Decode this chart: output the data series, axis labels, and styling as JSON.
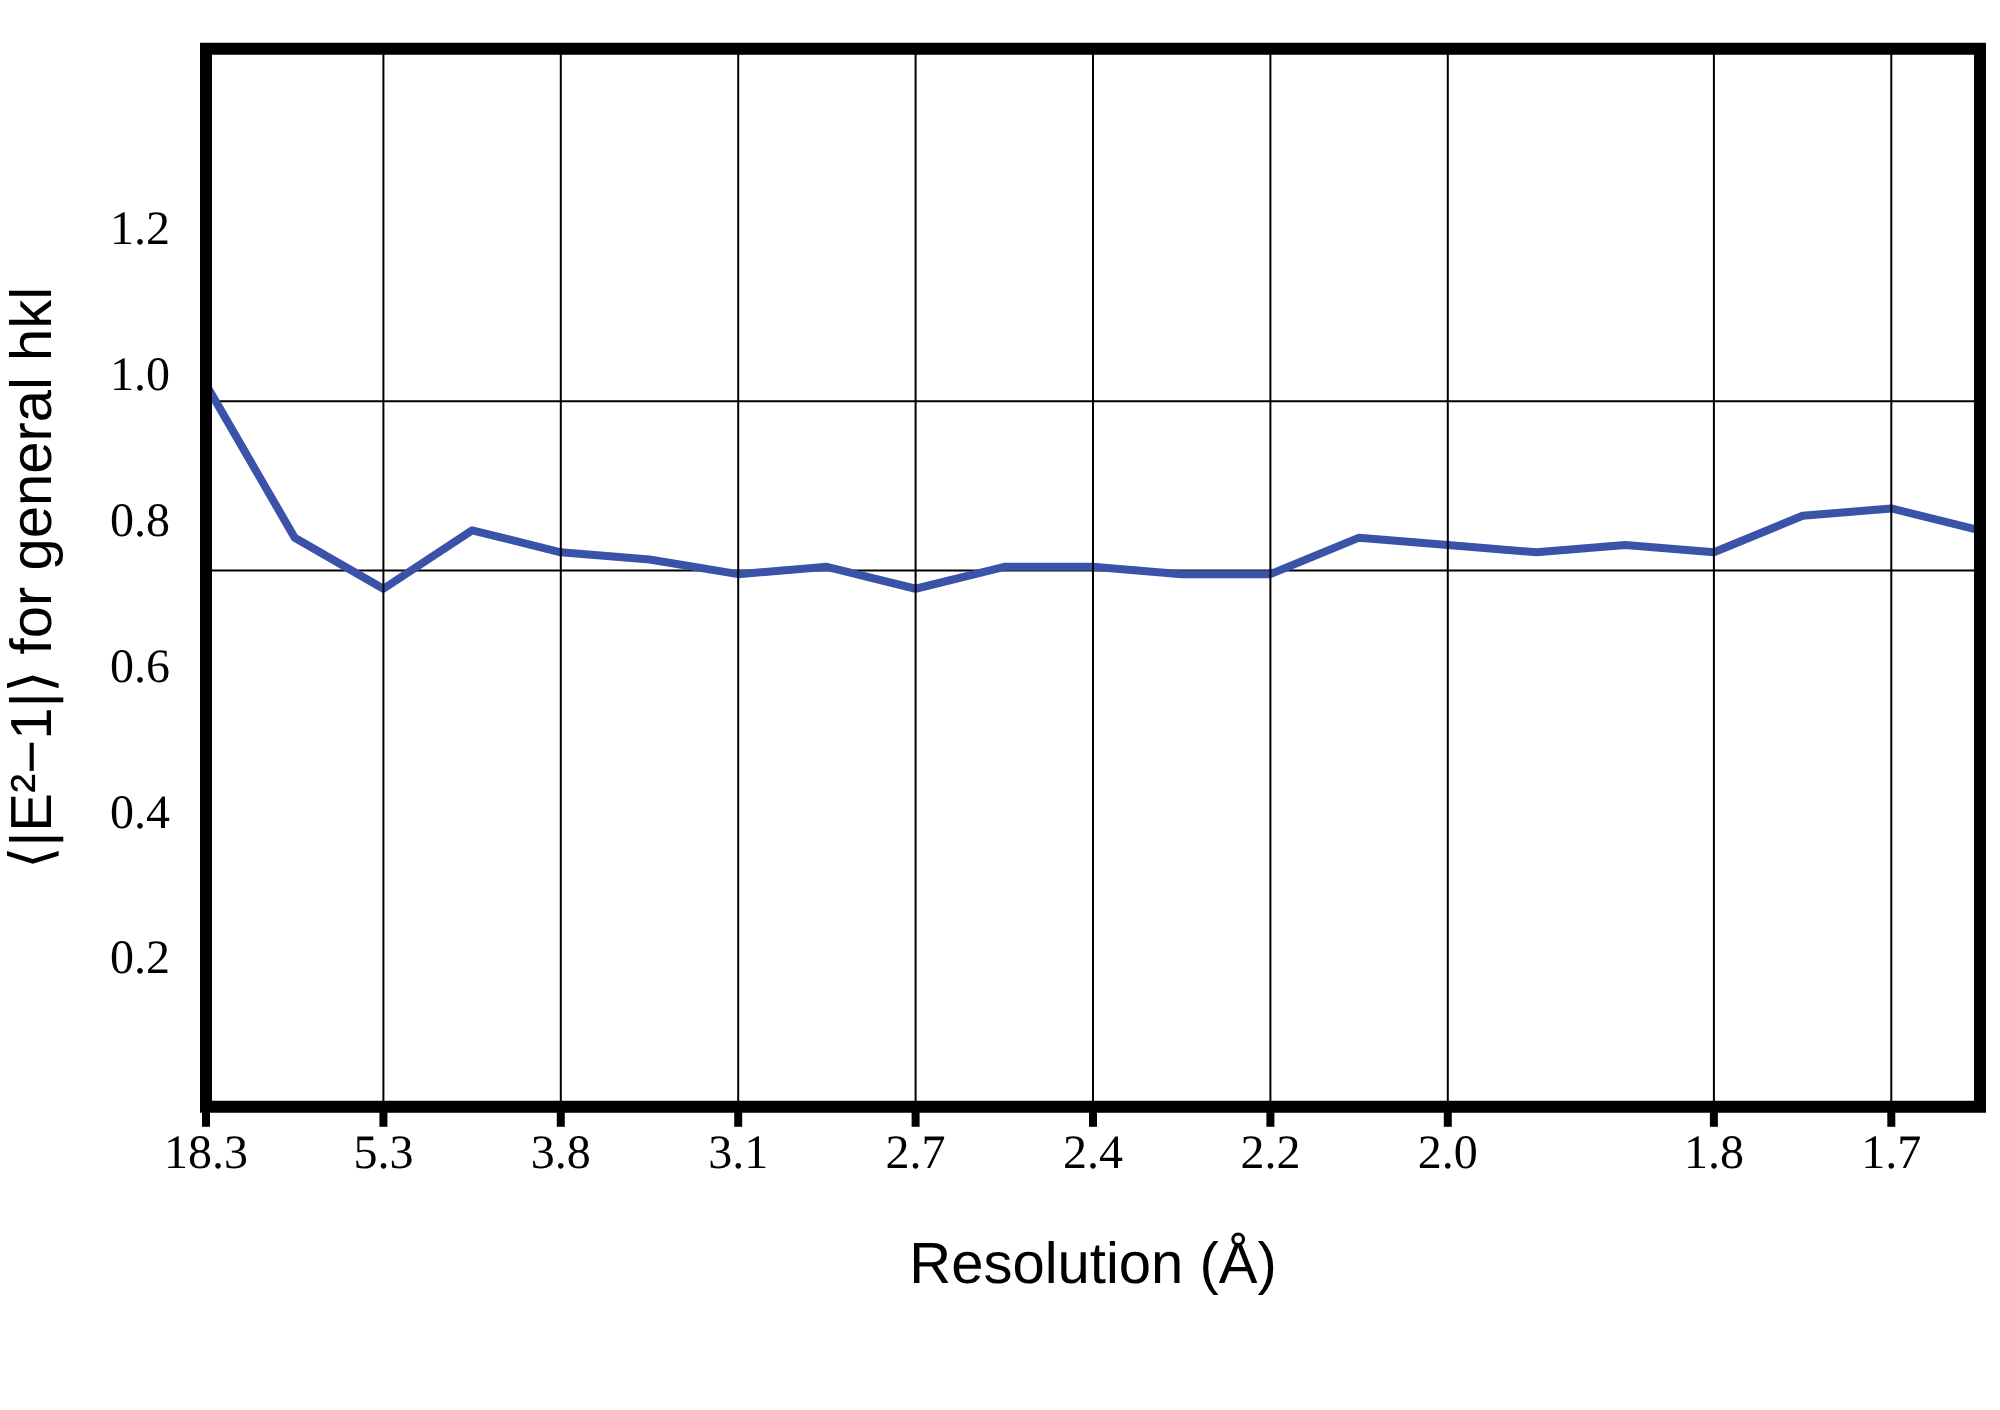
{
  "chart_data": {
    "type": "line",
    "xlabel": "Resolution (Å)",
    "ylabel": "⟨|E²−1|⟩ for general hkl",
    "categories": [
      "18.3",
      null,
      "5.3",
      null,
      "3.8",
      null,
      "3.1",
      null,
      "2.7",
      null,
      "2.4",
      null,
      "2.2",
      null,
      "2.0",
      null,
      null,
      "1.8",
      null,
      "1.7",
      null
    ],
    "series": [
      {
        "color": "#3a52a8",
        "values": [
          0.99,
          0.78,
          0.71,
          0.79,
          0.76,
          0.75,
          0.73,
          0.74,
          0.71,
          0.74,
          0.74,
          0.73,
          0.73,
          0.78,
          0.77,
          0.76,
          0.77,
          0.76,
          0.81,
          0.82,
          0.79
        ]
      }
    ],
    "ylim": [
      0,
      1.45
    ],
    "yticks": [
      {
        "value": 0.2,
        "label": "0.2"
      },
      {
        "value": 0.4,
        "label": "0.4"
      },
      {
        "value": 0.6,
        "label": "0.6"
      },
      {
        "value": 0.8,
        "label": "0.8"
      },
      {
        "value": 1,
        "label": "1.0"
      },
      {
        "value": 1.2,
        "label": "1.2"
      }
    ],
    "ref_lines": [
      {
        "axis": "y",
        "value": 0.967,
        "color": "#000000"
      },
      {
        "axis": "y",
        "value": 0.735,
        "color": "#000000"
      }
    ],
    "grid": "x",
    "legend": false,
    "marker": "none",
    "line_style": "solid"
  }
}
